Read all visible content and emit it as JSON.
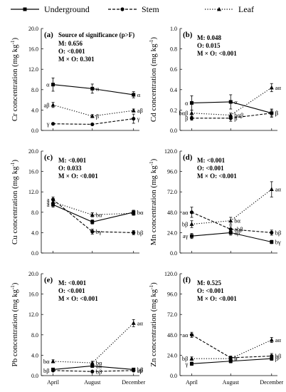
{
  "legend": [
    {
      "name": "Underground",
      "style": "solid",
      "marker": "square"
    },
    {
      "name": "Stem",
      "style": "dashed",
      "marker": "circle"
    },
    {
      "name": "Leaf",
      "style": "dotted",
      "marker": "triangle"
    }
  ],
  "chart_data": [
    {
      "type": "line",
      "panel": "(a)",
      "ylabel_main": "Cr concentration (mg kg",
      "ylabel_sup": "-1",
      "ylabel_end": ")",
      "categories": [
        "April",
        "August",
        "December"
      ],
      "ylim": [
        0,
        20
      ],
      "yticks": [
        "0.0",
        "4.0",
        "8.0",
        "12.0",
        "16.0",
        "20.0"
      ],
      "show_xticks": false,
      "stats_header": "Source of significance (p>F)",
      "stats": [
        "M: 0.656",
        "O: <0.001",
        "M × O: 0.301"
      ],
      "series": [
        {
          "values": [
            9.0,
            8.2,
            7.0
          ],
          "err": [
            1.3,
            0.9,
            0.6
          ],
          "labels": [
            "α",
            "α",
            "α"
          ]
        },
        {
          "values": [
            1.3,
            1.2,
            2.3
          ],
          "err": [
            0.1,
            0.1,
            0.9
          ],
          "labels": [
            "γ",
            "",
            "γ"
          ]
        },
        {
          "values": [
            5.0,
            2.8,
            3.9
          ],
          "err": [
            0.5,
            0.3,
            0.3
          ],
          "labels": [
            "aβ",
            "β",
            "aβ"
          ]
        }
      ]
    },
    {
      "type": "line",
      "panel": "(b)",
      "ylabel_main": "Cd concentration (mg kg",
      "ylabel_sup": "-1",
      "ylabel_end": ")",
      "categories": [
        "April",
        "August",
        "December"
      ],
      "ylim": [
        0,
        1.0
      ],
      "yticks": [
        "0.0",
        "0.2",
        "0.4",
        "0.6",
        "0.8",
        "1.0"
      ],
      "show_xticks": false,
      "stats_header": "",
      "stats": [
        "M: 0.048",
        "O: 0.015",
        "M × O: <0.001"
      ],
      "series": [
        {
          "values": [
            0.27,
            0.28,
            0.17
          ],
          "err": [
            0.07,
            0.07,
            0.04
          ],
          "labels": [
            "α",
            "α",
            "β"
          ]
        },
        {
          "values": [
            0.12,
            0.12,
            0.17
          ],
          "err": [
            0.02,
            0.03,
            0.03
          ],
          "labels": [
            "β",
            "β",
            "β"
          ]
        },
        {
          "values": [
            0.17,
            0.15,
            0.42
          ],
          "err": [
            0.03,
            0.02,
            0.04
          ],
          "labels": [
            "bαβ",
            "bαβ",
            "aα"
          ]
        }
      ]
    },
    {
      "type": "line",
      "panel": "(c)",
      "ylabel_main": "Cu concentration (mg kg",
      "ylabel_sup": "-1",
      "ylabel_end": ")",
      "categories": [
        "April",
        "August",
        "December"
      ],
      "ylim": [
        0,
        20
      ],
      "yticks": [
        "0.0",
        "4.0",
        "8.0",
        "12.0",
        "16.0",
        "20.0"
      ],
      "show_xticks": false,
      "stats_header": "",
      "stats": [
        "M: <0.001",
        "O: 0.033",
        "M × O: <0.001"
      ],
      "series": [
        {
          "values": [
            9.5,
            6.1,
            8.0
          ],
          "err": [
            0.5,
            0.4,
            0.4
          ],
          "labels": [
            "a",
            "",
            "bα"
          ]
        },
        {
          "values": [
            10.5,
            4.2,
            4.0
          ],
          "err": [
            0.5,
            0.5,
            0.4
          ],
          "labels": [
            "a",
            "bγ",
            "bβ"
          ]
        },
        {
          "values": [
            10.0,
            7.5,
            7.8
          ],
          "err": [
            0.4,
            0.4,
            0.4
          ],
          "labels": [
            "a",
            "bα",
            ""
          ]
        }
      ]
    },
    {
      "type": "line",
      "panel": "(d)",
      "ylabel_main": "Mn concentration (mg kg",
      "ylabel_sup": "-1",
      "ylabel_end": ")",
      "categories": [
        "April",
        "August",
        "December"
      ],
      "ylim": [
        0,
        120
      ],
      "yticks": [
        "0.0",
        "24.0",
        "48.0",
        "72.0",
        "96.0",
        "120.0"
      ],
      "show_xticks": false,
      "stats_header": "",
      "stats": [
        "M: <0.001",
        "O: <0.001",
        "M × O: <0.001"
      ],
      "series": [
        {
          "values": [
            20,
            24,
            13
          ],
          "err": [
            3,
            3,
            2
          ],
          "labels": [
            "aγ",
            "aβ",
            "bγ"
          ]
        },
        {
          "values": [
            48,
            28,
            24
          ],
          "err": [
            6,
            4,
            3
          ],
          "labels": [
            "aα",
            "abβ",
            "bβ"
          ]
        },
        {
          "values": [
            34,
            38,
            75
          ],
          "err": [
            4,
            4,
            9
          ],
          "labels": [
            "bβ",
            "bα",
            "aα"
          ]
        }
      ]
    },
    {
      "type": "line",
      "panel": "(e)",
      "ylabel_main": "Pb concentration (mg kg",
      "ylabel_sup": "-1",
      "ylabel_end": ")",
      "categories": [
        "April",
        "August",
        "December"
      ],
      "ylim": [
        0,
        20
      ],
      "yticks": [
        "0.0",
        "4.0",
        "8.0",
        "12.0",
        "16.0",
        "20.0"
      ],
      "show_xticks": true,
      "stats_header": "",
      "stats": [
        "M: <0.001",
        "O: <0.001",
        "M × O: <0.001"
      ],
      "series": [
        {
          "values": [
            1.2,
            1.9,
            1.2
          ],
          "err": [
            0.2,
            0.3,
            0.2
          ],
          "labels": [
            "",
            "aα",
            "bβ"
          ]
        },
        {
          "values": [
            1.0,
            0.8,
            1.0
          ],
          "err": [
            0.1,
            0.1,
            0.1
          ],
          "labels": [
            "bβ",
            "bβ",
            "aβ"
          ]
        },
        {
          "values": [
            2.8,
            2.5,
            10.3
          ],
          "err": [
            0.3,
            0.3,
            0.7
          ],
          "labels": [
            "bα",
            "bα",
            "aα"
          ]
        }
      ]
    },
    {
      "type": "line",
      "panel": "(f)",
      "ylabel_main": "Zn concentration (mg kg",
      "ylabel_sup": "-1",
      "ylabel_end": ")",
      "categories": [
        "April",
        "August",
        "December"
      ],
      "ylim": [
        0,
        120
      ],
      "yticks": [
        "0.0",
        "24.0",
        "48.0",
        "72.0",
        "96.0",
        "120.0"
      ],
      "show_xticks": true,
      "stats_header": "",
      "stats": [
        "M: 0.525",
        "O: <0.001",
        "M × O: <0.001"
      ],
      "series": [
        {
          "values": [
            14,
            17,
            20
          ],
          "err": [
            2,
            2,
            2
          ],
          "labels": [
            "γ",
            "",
            "β"
          ]
        },
        {
          "values": [
            48,
            21,
            23
          ],
          "err": [
            3,
            2,
            3
          ],
          "labels": [
            "aα",
            "b",
            "bβ"
          ]
        },
        {
          "values": [
            20,
            20,
            42
          ],
          "err": [
            2,
            2,
            3
          ],
          "labels": [
            "bβ",
            "b",
            "aα"
          ]
        }
      ]
    }
  ]
}
